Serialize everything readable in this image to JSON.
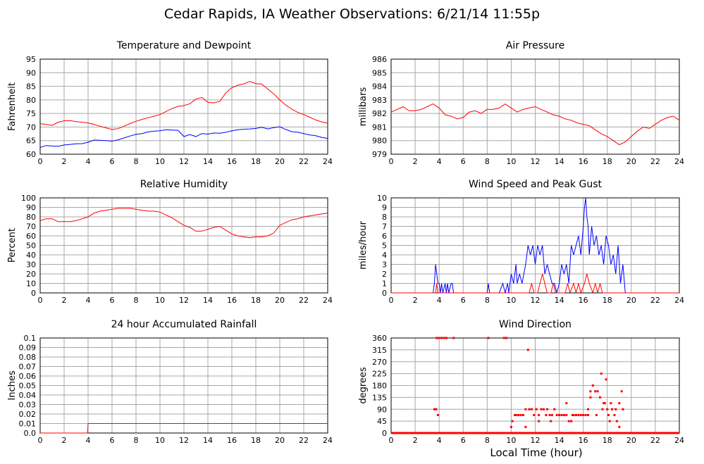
{
  "title": "Cedar Rapids, IA Weather Observations: 6/21/14 11:55p",
  "xlabel": "Local Time (hour)",
  "chart_data": [
    {
      "id": "temp",
      "type": "line",
      "title": "Temperature and Dewpoint",
      "ylabel": "Fahrenheit",
      "xlabel": "",
      "xlim": [
        0,
        24
      ],
      "ylim": [
        60,
        95
      ],
      "xticks": [
        0,
        2,
        4,
        6,
        8,
        10,
        12,
        14,
        16,
        18,
        20,
        22,
        24
      ],
      "yticks": [
        60,
        65,
        70,
        75,
        80,
        85,
        90,
        95
      ],
      "grid": true,
      "series": [
        {
          "color": "#ff0000",
          "x": [
            0,
            0.5,
            1,
            1.5,
            2,
            2.5,
            3,
            3.5,
            4,
            4.5,
            5,
            5.5,
            6,
            6.5,
            7,
            7.5,
            8,
            8.5,
            9,
            9.5,
            10,
            10.5,
            11,
            11.5,
            12,
            12.5,
            13,
            13.5,
            14,
            14.5,
            15,
            15.5,
            16,
            16.5,
            17,
            17.5,
            18,
            18.5,
            19,
            19.5,
            20,
            20.5,
            21,
            21.5,
            22,
            22.5,
            23,
            23.5,
            24
          ],
          "y": [
            71.2,
            71,
            70.6,
            71.8,
            72.3,
            72.4,
            72,
            71.8,
            71.5,
            71,
            70.3,
            69.7,
            69.1,
            69.4,
            70.3,
            71.3,
            72.1,
            72.8,
            73.4,
            74,
            74.6,
            75.7,
            76.8,
            77.6,
            77.9,
            78.6,
            80.3,
            80.9,
            79.1,
            78.9,
            79.5,
            82.6,
            84.5,
            85.4,
            85.9,
            86.8,
            86,
            85.8,
            84,
            82.2,
            80,
            78.1,
            76.6,
            75.4,
            74.6,
            73.6,
            72.6,
            71.9,
            71.4
          ]
        },
        {
          "color": "#0000ff",
          "x": [
            0,
            0.5,
            1,
            1.5,
            2,
            2.5,
            3,
            3.5,
            4,
            4.5,
            5,
            5.5,
            6,
            6.5,
            7,
            7.5,
            8,
            8.5,
            9,
            9.5,
            10,
            10.5,
            11,
            11.5,
            12,
            12.5,
            13,
            13.5,
            14,
            14.5,
            15,
            15.5,
            16,
            16.5,
            17,
            17.5,
            18,
            18.5,
            19,
            19.5,
            20,
            20.5,
            21,
            21.5,
            22,
            22.5,
            23,
            23.5,
            24
          ],
          "y": [
            62.5,
            63.2,
            63,
            62.9,
            63.4,
            63.6,
            63.8,
            63.9,
            64.4,
            65.2,
            65.1,
            65,
            64.8,
            65.3,
            66,
            66.7,
            67.3,
            67.6,
            68.2,
            68.5,
            68.6,
            69,
            68.9,
            68.8,
            66.5,
            67.2,
            66.5,
            67.6,
            67.4,
            67.8,
            67.7,
            68.1,
            68.6,
            69,
            69.2,
            69.3,
            69.5,
            69.9,
            69.3,
            69.8,
            70.1,
            69.1,
            68.3,
            68.1,
            67.6,
            67.1,
            66.8,
            66.2,
            65.8
          ]
        }
      ]
    },
    {
      "id": "pressure",
      "type": "line",
      "title": "Air Pressure",
      "ylabel": "millibars",
      "xlabel": "",
      "xlim": [
        0,
        24
      ],
      "ylim": [
        979,
        986
      ],
      "xticks": [
        0,
        2,
        4,
        6,
        8,
        10,
        12,
        14,
        16,
        18,
        20,
        22,
        24
      ],
      "yticks": [
        979,
        980,
        981,
        982,
        983,
        984,
        985,
        986
      ],
      "grid": true,
      "series": [
        {
          "color": "#ff0000",
          "x": [
            0,
            0.5,
            1,
            1.5,
            2,
            2.5,
            3,
            3.5,
            4,
            4.5,
            5,
            5.5,
            6,
            6.5,
            7,
            7.5,
            8,
            8.5,
            9,
            9.5,
            10,
            10.5,
            11,
            11.5,
            12,
            12.5,
            13,
            13.5,
            14,
            14.5,
            15,
            15.5,
            16,
            16.5,
            17,
            17.5,
            18,
            18.5,
            19,
            19.5,
            20,
            20.5,
            21,
            21.5,
            22,
            22.5,
            23,
            23.5,
            24
          ],
          "y": [
            982.1,
            982.3,
            982.5,
            982.2,
            982.2,
            982.3,
            982.5,
            982.7,
            982.4,
            981.9,
            981.8,
            981.6,
            981.7,
            982.1,
            982.2,
            982,
            982.3,
            982.3,
            982.4,
            982.7,
            982.4,
            982.1,
            982.3,
            982.4,
            982.5,
            982.3,
            982.1,
            981.9,
            981.8,
            981.6,
            981.5,
            981.3,
            981.2,
            981.1,
            980.8,
            980.5,
            980.3,
            980,
            979.7,
            979.9,
            980.3,
            980.7,
            981,
            980.9,
            981.2,
            981.5,
            981.7,
            981.8,
            981.5
          ]
        }
      ]
    },
    {
      "id": "humidity",
      "type": "line",
      "title": "Relative Humidity",
      "ylabel": "Percent",
      "xlabel": "",
      "xlim": [
        0,
        24
      ],
      "ylim": [
        0,
        100
      ],
      "xticks": [
        0,
        2,
        4,
        6,
        8,
        10,
        12,
        14,
        16,
        18,
        20,
        22,
        24
      ],
      "yticks": [
        0,
        10,
        20,
        30,
        40,
        50,
        60,
        70,
        80,
        90,
        100
      ],
      "grid": true,
      "series": [
        {
          "color": "#ff0000",
          "x": [
            0,
            0.5,
            1,
            1.5,
            2,
            2.5,
            3,
            3.5,
            4,
            4.5,
            5,
            5.5,
            6,
            6.5,
            7,
            7.5,
            8,
            8.5,
            9,
            9.5,
            10,
            10.5,
            11,
            11.5,
            12,
            12.5,
            13,
            13.5,
            14,
            14.5,
            15,
            15.5,
            16,
            16.5,
            17,
            17.5,
            18,
            18.5,
            19,
            19.5,
            20,
            20.5,
            21,
            21.5,
            22,
            22.5,
            23,
            23.5,
            24
          ],
          "y": [
            76,
            78,
            78,
            75,
            75,
            75,
            76,
            78,
            80,
            84,
            86,
            87,
            88,
            89,
            89,
            89,
            88,
            87,
            86,
            86,
            85,
            82,
            79,
            75,
            71,
            69,
            65,
            65,
            67,
            69,
            70,
            66,
            62,
            60,
            59,
            58,
            59,
            59,
            60,
            63,
            71,
            74,
            77,
            78,
            80,
            81,
            82,
            83,
            84
          ]
        }
      ]
    },
    {
      "id": "wind-speed",
      "type": "line",
      "title": "Wind Speed and Peak Gust",
      "ylabel": "miles/hour",
      "xlabel": "",
      "xlim": [
        0,
        24
      ],
      "ylim": [
        0,
        10
      ],
      "xticks": [
        0,
        2,
        4,
        6,
        8,
        10,
        12,
        14,
        16,
        18,
        20,
        22,
        24
      ],
      "yticks": [
        0,
        1,
        2,
        3,
        4,
        5,
        6,
        7,
        8,
        9,
        10
      ],
      "grid": true,
      "series": [
        {
          "color": "#0000ff",
          "x": [
            0,
            3.5,
            3.6,
            3.7,
            3.8,
            3.9,
            4,
            4.1,
            4.2,
            4.3,
            4.5,
            4.6,
            4.7,
            4.8,
            5,
            5.1,
            5.2,
            8,
            8.1,
            8.2,
            9,
            9.3,
            9.5,
            9.7,
            9.8,
            10,
            10.2,
            10.4,
            10.5,
            10.7,
            10.9,
            11.2,
            11.4,
            11.6,
            11.8,
            12,
            12.2,
            12.4,
            12.6,
            12.8,
            13,
            13.2,
            13.4,
            13.6,
            13.8,
            14,
            14.2,
            14.4,
            14.6,
            14.8,
            15,
            15.2,
            15.4,
            15.6,
            15.8,
            16,
            16.1,
            16.2,
            16.3,
            16.4,
            16.5,
            16.7,
            16.9,
            17.1,
            17.3,
            17.5,
            17.7,
            17.9,
            18.1,
            18.3,
            18.5,
            18.7,
            18.9,
            19.1,
            19.3,
            19.5,
            24
          ],
          "y": [
            0,
            0,
            1,
            3,
            2,
            1,
            1,
            0,
            1,
            0,
            1,
            0,
            1,
            0,
            1,
            1,
            0,
            0,
            1,
            0,
            0,
            1,
            0,
            1,
            0,
            2,
            1,
            3,
            1,
            2,
            1,
            3,
            5,
            4,
            5,
            3,
            5,
            4,
            5,
            2,
            3,
            2,
            1,
            1,
            0,
            1,
            3,
            2,
            3,
            1,
            5,
            4,
            5,
            6,
            4,
            7,
            9,
            10,
            8,
            7,
            4,
            7,
            5,
            6,
            4,
            5,
            3,
            6,
            5,
            3,
            4,
            2,
            5,
            1,
            3,
            0,
            0
          ]
        },
        {
          "color": "#ff0000",
          "x": [
            0,
            3.7,
            3.8,
            3.9,
            11.5,
            11.7,
            11.9,
            12.2,
            12.4,
            12.6,
            12.8,
            13,
            13.3,
            13.5,
            13.7,
            14.5,
            14.7,
            14.9,
            15.2,
            15.4,
            15.6,
            15.8,
            16.1,
            16.3,
            16.5,
            16.8,
            17,
            17.2,
            17.4,
            17.6,
            17.9,
            24
          ],
          "y": [
            0,
            0,
            1,
            0,
            0,
            1,
            0,
            0,
            1,
            2,
            1,
            0,
            0,
            1,
            0,
            0,
            1,
            0,
            1,
            0,
            1,
            0,
            1,
            2,
            1,
            0,
            1,
            0,
            1,
            0,
            0,
            0
          ]
        }
      ]
    },
    {
      "id": "rainfall",
      "type": "line",
      "title": "24 hour Accumulated Rainfall",
      "ylabel": "Inches",
      "xlabel": "",
      "xlim": [
        0,
        24
      ],
      "ylim": [
        0,
        0.1
      ],
      "xticks": [
        0,
        2,
        4,
        6,
        8,
        10,
        12,
        14,
        16,
        18,
        20,
        22,
        24
      ],
      "yticks": [
        "0.0",
        "0.01",
        "0.02",
        "0.03",
        "0.04",
        "0.05",
        "0.06",
        "0.07",
        "0.08",
        "0.09",
        "0.1"
      ],
      "grid": true,
      "series": [
        {
          "color": "#ff0000",
          "x": [
            0,
            3.95,
            4.0,
            24
          ],
          "y": [
            0,
            0,
            0.01,
            0.01
          ]
        }
      ]
    },
    {
      "id": "wind-direction",
      "type": "scatter",
      "title": "Wind Direction",
      "ylabel": "degrees",
      "xlabel": "Local Time (hour)",
      "xlim": [
        0,
        24
      ],
      "ylim": [
        0,
        360
      ],
      "xticks": [
        0,
        2,
        4,
        6,
        8,
        10,
        12,
        14,
        16,
        18,
        20,
        22,
        24
      ],
      "yticks": [
        0,
        45,
        90,
        135,
        180,
        225,
        270,
        315,
        360
      ],
      "grid": true,
      "zero_line": [
        0,
        24
      ],
      "series": [
        {
          "color": "#ff0000",
          "x": [
            3.6,
            3.75,
            3.9,
            3.8,
            4.0,
            4.2,
            4.4,
            4.6,
            5.2,
            8.1,
            9.4,
            9.6,
            10.0,
            10.1,
            10.3,
            10.6,
            10.8,
            11.0,
            11.2,
            11.4,
            11.5,
            11.7,
            11.9,
            12.1,
            12.3,
            12.5,
            12.7,
            12.9,
            13.0,
            13.2,
            13.4,
            13.6,
            13.8,
            14.0,
            14.2,
            14.4,
            14.6,
            14.8,
            15.0,
            15.2,
            15.4,
            15.6,
            15.8,
            16.0,
            16.2,
            16.4,
            16.6,
            16.8,
            17.0,
            17.2,
            17.4,
            17.6,
            17.8,
            18.0,
            18.2,
            18.4,
            18.6,
            18.8,
            19.0,
            19.2,
            11.2,
            12.3,
            13.3,
            14.6,
            15.1,
            16.4,
            17.1,
            17.5,
            17.9,
            18.3,
            18.7,
            19.0,
            19.3,
            10.4,
            16.6,
            17.7,
            18.1
          ],
          "y": [
            90,
            90,
            68,
            360,
            360,
            360,
            360,
            360,
            360,
            360,
            360,
            360,
            23,
            45,
            68,
            68,
            68,
            68,
            90,
            315,
            90,
            90,
            68,
            90,
            68,
            90,
            90,
            68,
            90,
            68,
            68,
            90,
            68,
            68,
            68,
            68,
            68,
            45,
            45,
            68,
            68,
            68,
            68,
            68,
            68,
            68,
            158,
            180,
            158,
            158,
            135,
            90,
            113,
            90,
            45,
            90,
            68,
            45,
            113,
            158,
            23,
            45,
            45,
            113,
            68,
            90,
            68,
            225,
            203,
            113,
            90,
            23,
            90,
            68,
            135,
            113,
            68
          ]
        }
      ]
    }
  ]
}
